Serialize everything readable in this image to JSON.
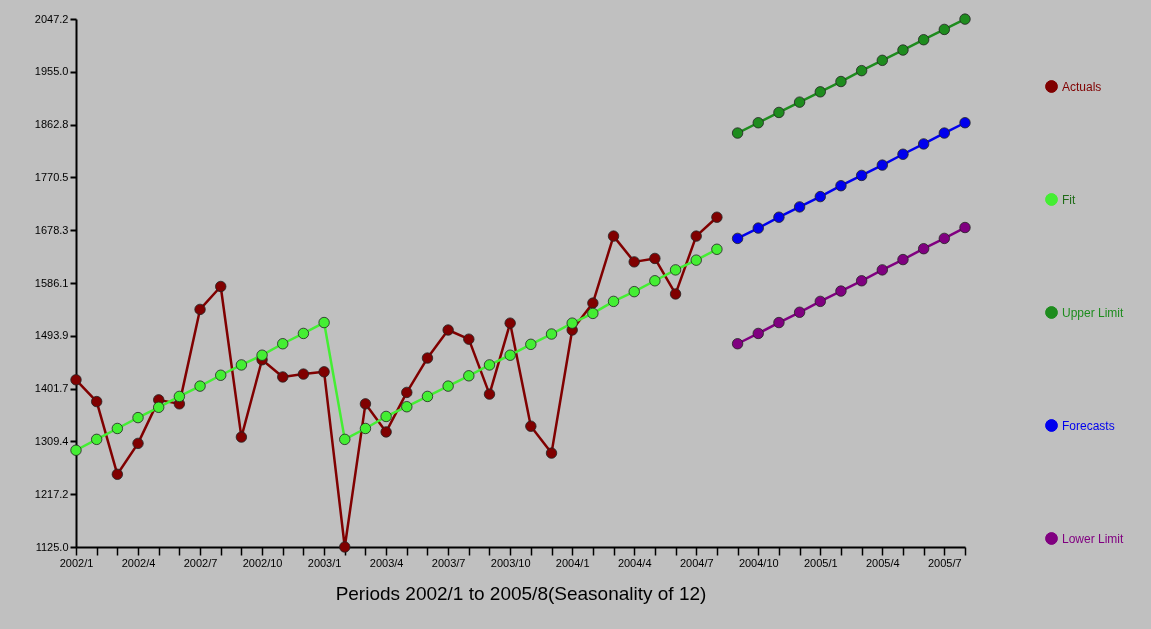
{
  "chart_data": {
    "type": "line",
    "xlabel": "Periods 2002/1 to 2005/8(Seasonality of 12)",
    "categories": [
      "2002/1",
      null,
      null,
      "2002/4",
      null,
      null,
      "2002/7",
      null,
      null,
      "2002/10",
      null,
      null,
      "2003/1",
      null,
      null,
      "2003/4",
      null,
      null,
      "2003/7",
      null,
      null,
      "2003/10",
      null,
      null,
      "2004/1",
      null,
      null,
      "2004/4",
      null,
      null,
      "2004/7",
      null,
      null,
      "2004/10",
      null,
      null,
      "2005/1",
      null,
      null,
      "2005/4",
      null,
      null,
      "2005/7",
      null
    ],
    "series": [
      {
        "name": "Actuals",
        "color": "#800000",
        "values": [
          1417,
          1379,
          1252,
          1306,
          1382,
          1375,
          1540,
          1580,
          1317,
          1452,
          1422,
          1427,
          1431,
          1125,
          1375,
          1326,
          1395,
          1455,
          1504,
          1488,
          1392,
          1516,
          1336,
          1289,
          1504,
          1551,
          1668,
          1623,
          1629,
          1567,
          1668,
          1701,
          null,
          null,
          null,
          null,
          null,
          null,
          null,
          null,
          null,
          null,
          null,
          null
        ]
      },
      {
        "name": "Fit",
        "color": "#44ee33",
        "values": [
          1294,
          1313,
          1332,
          1351,
          1369,
          1388,
          1406,
          1425,
          1443,
          1460,
          1480,
          1498,
          1517,
          1313,
          1332,
          1353,
          1370,
          1388,
          1406,
          1424,
          1443,
          1460,
          1479,
          1497,
          1516,
          1533,
          1554,
          1571,
          1590,
          1609,
          1626,
          1645,
          null,
          null,
          null,
          null,
          null,
          null,
          null,
          null,
          null,
          null,
          null,
          null
        ]
      },
      {
        "name": "Upper Limit",
        "color": "#1e8c1e",
        "values": [
          null,
          null,
          null,
          null,
          null,
          null,
          null,
          null,
          null,
          null,
          null,
          null,
          null,
          null,
          null,
          null,
          null,
          null,
          null,
          null,
          null,
          null,
          null,
          null,
          null,
          null,
          null,
          null,
          null,
          null,
          null,
          null,
          1848,
          1866,
          1884,
          1902,
          1920,
          1938,
          1957,
          1975,
          1993,
          2011,
          2029,
          2047
        ]
      },
      {
        "name": "Forecasts",
        "color": "#0000ee",
        "values": [
          null,
          null,
          null,
          null,
          null,
          null,
          null,
          null,
          null,
          null,
          null,
          null,
          null,
          null,
          null,
          null,
          null,
          null,
          null,
          null,
          null,
          null,
          null,
          null,
          null,
          null,
          null,
          null,
          null,
          null,
          null,
          null,
          1664,
          1682,
          1701,
          1719,
          1737,
          1756,
          1774,
          1792,
          1811,
          1829,
          1848,
          1866
        ]
      },
      {
        "name": "Lower Limit",
        "color": "#800080",
        "values": [
          null,
          null,
          null,
          null,
          null,
          null,
          null,
          null,
          null,
          null,
          null,
          null,
          null,
          null,
          null,
          null,
          null,
          null,
          null,
          null,
          null,
          null,
          null,
          null,
          null,
          null,
          null,
          null,
          null,
          null,
          null,
          null,
          1480,
          1498,
          1517,
          1535,
          1554,
          1572,
          1590,
          1609,
          1627,
          1646,
          1664,
          1683
        ]
      }
    ],
    "ylim": [
      1125.0,
      2047.2
    ],
    "yticks": [
      {
        "value": 1125,
        "label": "1125.0"
      },
      1217.2,
      1309.4,
      1401.7,
      1493.9,
      1586.1,
      1678.3,
      1770.5,
      1862.8,
      {
        "value": 1955,
        "label": "1955.0"
      },
      2047.2
    ],
    "legend": "right",
    "marker": "circle",
    "line_style": "solid",
    "grid": false
  }
}
